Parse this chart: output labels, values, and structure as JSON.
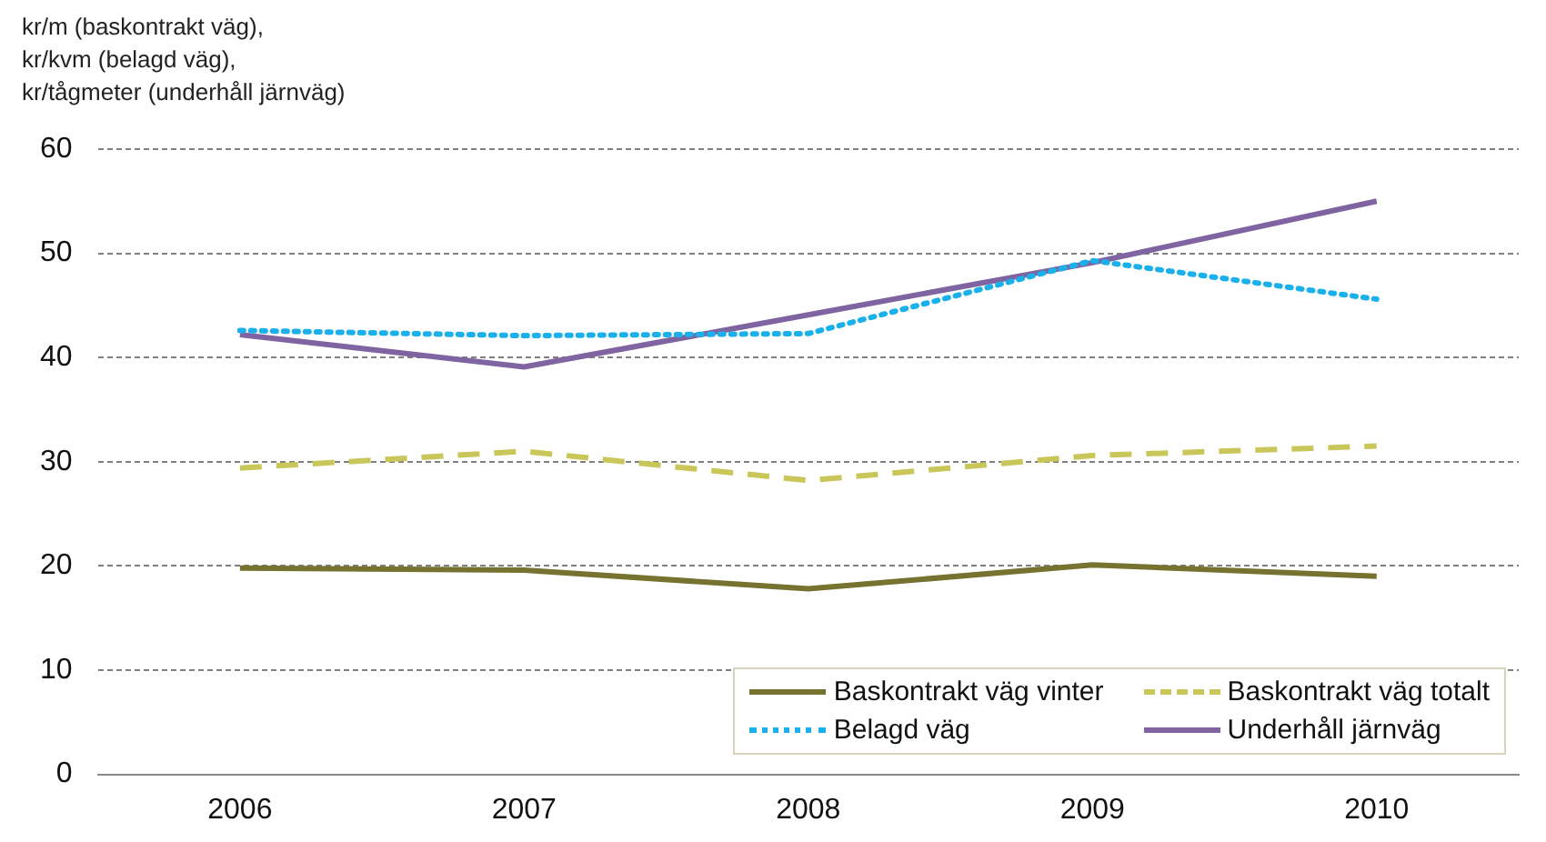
{
  "chart_data": {
    "type": "line",
    "ylabel": "kr/m (baskontrakt väg),\nkr/kvm (belagd väg),\nkr/tågmeter (underhåll järnväg)",
    "categories": [
      "2006",
      "2007",
      "2008",
      "2009",
      "2010"
    ],
    "series": [
      {
        "name": "Baskontrakt väg vinter",
        "color": "#767230",
        "line_style": "solid",
        "values": [
          19.8,
          19.6,
          17.8,
          20.1,
          19
        ]
      },
      {
        "name": "Baskontrakt väg totalt",
        "color": "#c9c65a",
        "line_style": "dashed",
        "values": [
          29.4,
          31,
          28.2,
          30.6,
          31.5
        ]
      },
      {
        "name": "Belagd väg",
        "color": "#1ab0ec",
        "line_style": "dotted",
        "values": [
          42.6,
          42.1,
          42.3,
          49.3,
          45.6
        ]
      },
      {
        "name": "Underhåll järnväg",
        "color": "#8064a2",
        "line_style": "solid",
        "values": [
          42.2,
          39.1,
          44.1,
          49.1,
          55
        ]
      }
    ],
    "ylim": [
      0,
      60
    ],
    "yticks": [
      0,
      10,
      20,
      30,
      40,
      50,
      60
    ],
    "grid": "y",
    "legend": "bottom right",
    "marker": "none"
  }
}
